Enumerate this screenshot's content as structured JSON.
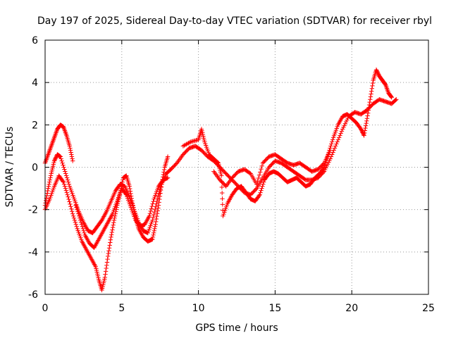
{
  "chart_data": {
    "type": "scatter",
    "title": "Day 197 of 2025, Sidereal Day-to-day VTEC variation (SDTVAR) for receiver rbyl",
    "xlabel": "GPS time / hours",
    "ylabel": "SDTVAR / TECUs",
    "xlim": [
      0,
      25
    ],
    "ylim": [
      -6,
      6
    ],
    "xticks": [
      "0",
      "5",
      "10",
      "15",
      "20",
      "25"
    ],
    "yticks": [
      "-6",
      "-4",
      "-2",
      "0",
      "2",
      "4",
      "6"
    ],
    "grid": true,
    "marker": "+",
    "color": "#ff0000",
    "series": [
      {
        "values": [
          [
            0.0,
            -1.8
          ],
          [
            0.2,
            -1.0
          ],
          [
            0.4,
            -0.3
          ],
          [
            0.6,
            0.3
          ],
          [
            0.8,
            0.6
          ],
          [
            1.0,
            0.5
          ],
          [
            1.3,
            -0.2
          ],
          [
            1.6,
            -0.9
          ],
          [
            1.9,
            -1.5
          ],
          [
            2.2,
            -2.1
          ],
          [
            2.5,
            -2.6
          ],
          [
            2.8,
            -3.0
          ],
          [
            3.1,
            -3.1
          ],
          [
            3.4,
            -2.8
          ],
          [
            3.7,
            -2.5
          ],
          [
            4.0,
            -2.1
          ],
          [
            4.3,
            -1.6
          ],
          [
            4.6,
            -1.1
          ],
          [
            4.9,
            -0.8
          ],
          [
            5.2,
            -0.9
          ],
          [
            5.5,
            -1.4
          ],
          [
            5.8,
            -2.0
          ],
          [
            6.1,
            -2.6
          ],
          [
            6.4,
            -3.0
          ],
          [
            6.7,
            -3.1
          ],
          [
            7.0,
            -2.5
          ],
          [
            7.3,
            -1.6
          ],
          [
            7.6,
            -0.8
          ],
          [
            7.9,
            -0.3
          ],
          [
            8.2,
            -0.1
          ],
          [
            8.6,
            0.2
          ],
          [
            9.0,
            0.6
          ],
          [
            9.4,
            0.9
          ],
          [
            9.8,
            1.0
          ],
          [
            10.2,
            0.8
          ],
          [
            10.6,
            0.5
          ],
          [
            11.0,
            0.3
          ],
          [
            11.4,
            0.0
          ],
          [
            11.8,
            -0.3
          ],
          [
            12.2,
            -0.6
          ],
          [
            12.6,
            -0.9
          ],
          [
            13.0,
            -1.2
          ],
          [
            13.4,
            -1.3
          ],
          [
            13.8,
            -1.0
          ],
          [
            14.2,
            -0.5
          ],
          [
            14.6,
            0.0
          ],
          [
            15.0,
            0.3
          ],
          [
            15.4,
            0.2
          ],
          [
            15.8,
            0.0
          ],
          [
            16.2,
            -0.2
          ],
          [
            16.6,
            -0.4
          ],
          [
            17.0,
            -0.6
          ],
          [
            17.4,
            -0.6
          ],
          [
            17.8,
            -0.5
          ],
          [
            18.2,
            -0.2
          ],
          [
            18.6,
            0.4
          ],
          [
            19.0,
            1.1
          ],
          [
            19.4,
            1.8
          ],
          [
            19.8,
            2.4
          ],
          [
            20.2,
            2.6
          ],
          [
            20.6,
            2.5
          ],
          [
            21.0,
            2.7
          ],
          [
            21.4,
            3.0
          ],
          [
            21.8,
            3.2
          ],
          [
            22.2,
            3.1
          ],
          [
            22.6,
            3.0
          ],
          [
            22.9,
            3.2
          ]
        ]
      },
      {
        "values": [
          [
            0.0,
            0.2
          ],
          [
            0.2,
            0.6
          ],
          [
            0.4,
            1.0
          ],
          [
            0.6,
            1.4
          ],
          [
            0.8,
            1.8
          ],
          [
            1.0,
            2.0
          ],
          [
            1.2,
            1.9
          ],
          [
            1.4,
            1.5
          ],
          [
            1.6,
            1.0
          ],
          [
            1.8,
            0.3
          ]
        ]
      },
      {
        "values": [
          [
            0.0,
            -2.0
          ],
          [
            0.3,
            -1.5
          ],
          [
            0.6,
            -0.9
          ],
          [
            0.9,
            -0.4
          ],
          [
            1.2,
            -0.7
          ],
          [
            1.5,
            -1.4
          ],
          [
            1.8,
            -2.2
          ],
          [
            2.1,
            -2.9
          ],
          [
            2.4,
            -3.5
          ],
          [
            2.7,
            -3.9
          ],
          [
            3.0,
            -4.3
          ],
          [
            3.3,
            -4.7
          ],
          [
            3.5,
            -5.3
          ],
          [
            3.7,
            -5.8
          ],
          [
            3.9,
            -5.2
          ],
          [
            4.1,
            -4.2
          ],
          [
            4.3,
            -3.3
          ],
          [
            4.5,
            -2.5
          ],
          [
            4.7,
            -1.8
          ],
          [
            4.9,
            -1.2
          ],
          [
            5.1,
            -0.5
          ],
          [
            5.3,
            -0.4
          ],
          [
            5.5,
            -0.9
          ],
          [
            5.7,
            -1.7
          ],
          [
            5.9,
            -2.4
          ],
          [
            6.1,
            -2.9
          ],
          [
            6.4,
            -3.3
          ],
          [
            6.7,
            -3.5
          ],
          [
            7.0,
            -3.4
          ],
          [
            7.2,
            -2.7
          ],
          [
            7.4,
            -1.8
          ],
          [
            7.6,
            -0.8
          ],
          [
            7.8,
            0.0
          ],
          [
            8.0,
            0.5
          ]
        ]
      },
      {
        "values": [
          [
            2.0,
            -1.8
          ],
          [
            2.3,
            -2.5
          ],
          [
            2.6,
            -3.2
          ],
          [
            2.9,
            -3.6
          ],
          [
            3.2,
            -3.8
          ],
          [
            3.5,
            -3.4
          ],
          [
            3.8,
            -3.0
          ],
          [
            4.1,
            -2.6
          ],
          [
            4.4,
            -2.2
          ],
          [
            4.7,
            -1.6
          ],
          [
            5.0,
            -1.0
          ],
          [
            5.3,
            -1.3
          ],
          [
            5.6,
            -1.9
          ],
          [
            5.9,
            -2.5
          ],
          [
            6.2,
            -2.8
          ],
          [
            6.5,
            -2.7
          ],
          [
            6.8,
            -2.3
          ],
          [
            7.1,
            -1.5
          ],
          [
            7.4,
            -0.9
          ],
          [
            7.7,
            -0.6
          ],
          [
            8.0,
            -0.5
          ]
        ]
      },
      {
        "values": [
          [
            9.0,
            1.0
          ],
          [
            9.5,
            1.2
          ],
          [
            10.0,
            1.3
          ],
          [
            10.2,
            1.8
          ],
          [
            10.4,
            1.2
          ],
          [
            10.7,
            0.6
          ],
          [
            11.0,
            0.4
          ],
          [
            11.3,
            0.2
          ],
          [
            11.5,
            -0.4
          ],
          [
            11.6,
            -2.3
          ],
          [
            11.9,
            -1.7
          ],
          [
            12.2,
            -1.3
          ],
          [
            12.5,
            -1.0
          ],
          [
            12.8,
            -0.9
          ],
          [
            13.1,
            -1.2
          ],
          [
            13.4,
            -1.5
          ],
          [
            13.7,
            -1.6
          ],
          [
            14.0,
            -1.3
          ],
          [
            14.3,
            -0.6
          ],
          [
            14.6,
            -0.3
          ],
          [
            14.9,
            -0.2
          ],
          [
            15.2,
            -0.3
          ],
          [
            15.5,
            -0.5
          ],
          [
            15.8,
            -0.7
          ],
          [
            16.1,
            -0.6
          ],
          [
            16.4,
            -0.5
          ],
          [
            16.7,
            -0.7
          ],
          [
            17.0,
            -0.9
          ],
          [
            17.3,
            -0.8
          ],
          [
            17.6,
            -0.5
          ],
          [
            17.9,
            -0.3
          ],
          [
            18.2,
            0.0
          ],
          [
            18.5,
            0.7
          ],
          [
            18.8,
            1.4
          ],
          [
            19.1,
            2.0
          ],
          [
            19.4,
            2.4
          ],
          [
            19.7,
            2.5
          ],
          [
            20.0,
            2.3
          ],
          [
            20.3,
            2.1
          ],
          [
            20.6,
            1.8
          ],
          [
            20.8,
            1.5
          ],
          [
            21.0,
            2.3
          ],
          [
            21.2,
            3.2
          ],
          [
            21.4,
            4.1
          ],
          [
            21.6,
            4.6
          ],
          [
            21.8,
            4.3
          ],
          [
            22.0,
            4.1
          ],
          [
            22.2,
            3.9
          ],
          [
            22.4,
            3.5
          ],
          [
            22.6,
            3.3
          ]
        ]
      },
      {
        "values": [
          [
            11.0,
            -0.2
          ],
          [
            11.4,
            -0.6
          ],
          [
            11.8,
            -0.9
          ],
          [
            12.2,
            -0.5
          ],
          [
            12.6,
            -0.2
          ],
          [
            13.0,
            -0.1
          ],
          [
            13.4,
            -0.3
          ],
          [
            13.8,
            -0.8
          ],
          [
            14.2,
            0.2
          ],
          [
            14.6,
            0.5
          ],
          [
            15.0,
            0.6
          ],
          [
            15.4,
            0.4
          ],
          [
            15.8,
            0.2
          ],
          [
            16.2,
            0.1
          ],
          [
            16.6,
            0.2
          ],
          [
            17.0,
            0.0
          ],
          [
            17.4,
            -0.2
          ],
          [
            17.8,
            -0.1
          ],
          [
            18.2,
            0.2
          ],
          [
            18.6,
            0.8
          ]
        ]
      }
    ]
  }
}
